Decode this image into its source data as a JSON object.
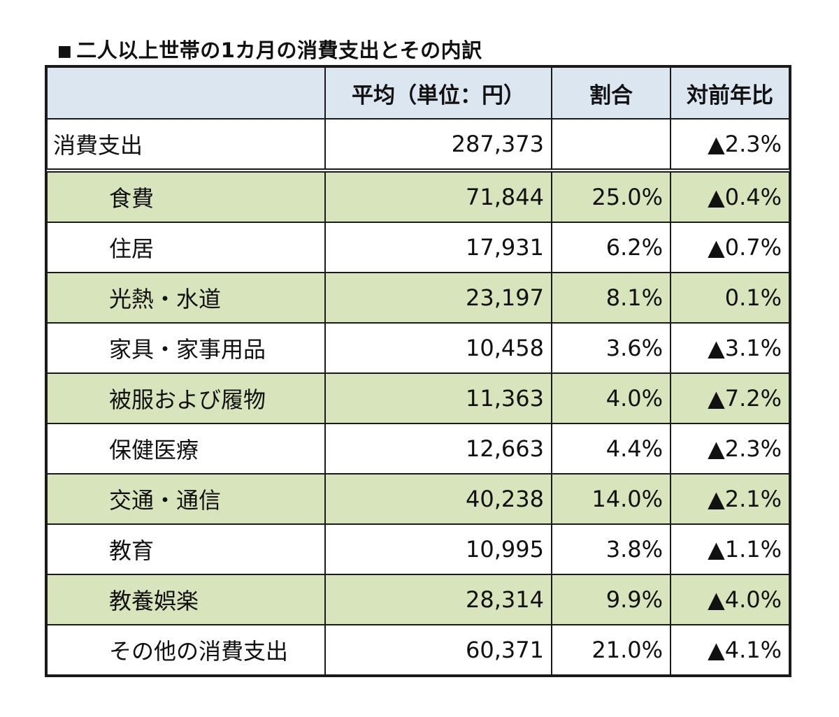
{
  "title": {
    "mark": "■",
    "text": "二人以上世帯の1カ月の消費支出とその内訳"
  },
  "table": {
    "headers": [
      "",
      "平均（単位：円）",
      "割合",
      "対前年比"
    ],
    "total": {
      "label": "消費支出",
      "average": "287,373",
      "share": "",
      "yoy": "▲2.3%"
    },
    "rows": [
      {
        "label": "食費",
        "average": "71,844",
        "share": "25.0%",
        "yoy": "▲0.4%"
      },
      {
        "label": "住居",
        "average": "17,931",
        "share": "6.2%",
        "yoy": "▲0.7%"
      },
      {
        "label": "光熱・水道",
        "average": "23,197",
        "share": "8.1%",
        "yoy": "0.1%"
      },
      {
        "label": "家具・家事用品",
        "average": "10,458",
        "share": "3.6%",
        "yoy": "▲3.1%"
      },
      {
        "label": "被服および履物",
        "average": "11,363",
        "share": "4.0%",
        "yoy": "▲7.2%"
      },
      {
        "label": "保健医療",
        "average": "12,663",
        "share": "4.4%",
        "yoy": "▲2.3%"
      },
      {
        "label": "交通・通信",
        "average": "40,238",
        "share": "14.0%",
        "yoy": "▲2.1%"
      },
      {
        "label": "教育",
        "average": "10,995",
        "share": "3.8%",
        "yoy": "▲1.1%"
      },
      {
        "label": "教養娯楽",
        "average": "28,314",
        "share": "9.9%",
        "yoy": "▲4.0%"
      },
      {
        "label": "その他の消費支出",
        "average": "60,371",
        "share": "21.0%",
        "yoy": "▲4.1%"
      }
    ]
  }
}
